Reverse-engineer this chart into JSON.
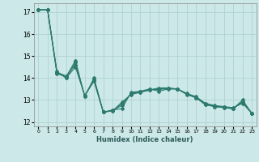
{
  "background_color": "#cce8e8",
  "grid_color": "#aacece",
  "line_color": "#2d7a6e",
  "xlabel": "Humidex (Indice chaleur)",
  "xlim": [
    -0.5,
    23.5
  ],
  "ylim": [
    11.8,
    17.4
  ],
  "yticks": [
    12,
    13,
    14,
    15,
    16,
    17
  ],
  "xticks": [
    0,
    1,
    2,
    3,
    4,
    5,
    6,
    7,
    8,
    9,
    10,
    11,
    12,
    13,
    14,
    15,
    16,
    17,
    18,
    19,
    20,
    21,
    22,
    23
  ],
  "series": [
    {
      "x": [
        0,
        1,
        2,
        3,
        4,
        5,
        6,
        7,
        8,
        9,
        10,
        11,
        12,
        13,
        14,
        15,
        16,
        17,
        18,
        19,
        20,
        21,
        22,
        23
      ],
      "y": [
        17.1,
        17.1,
        14.3,
        14.0,
        14.5,
        13.2,
        13.85,
        12.45,
        12.55,
        12.6,
        13.35,
        13.4,
        13.5,
        13.4,
        13.5,
        13.5,
        13.3,
        13.15,
        12.85,
        12.75,
        12.7,
        12.65,
        12.85,
        12.4
      ]
    },
    {
      "x": [
        0,
        1,
        2,
        3,
        4,
        5,
        6,
        7,
        8,
        9,
        10,
        11,
        12,
        13,
        14,
        15,
        16,
        17,
        18,
        19,
        20,
        21,
        22,
        23
      ],
      "y": [
        17.1,
        17.1,
        14.2,
        14.05,
        14.8,
        13.15,
        14.0,
        12.45,
        12.5,
        12.9,
        13.25,
        13.35,
        13.45,
        13.55,
        13.55,
        13.5,
        13.25,
        13.1,
        12.8,
        12.7,
        12.65,
        12.6,
        13.0,
        12.4
      ]
    },
    {
      "x": [
        0,
        1,
        2,
        3,
        4,
        5,
        6,
        7,
        8,
        9,
        10,
        11,
        12,
        13,
        14,
        15,
        16,
        17,
        18,
        19,
        20,
        21,
        22,
        23
      ],
      "y": [
        17.1,
        17.1,
        14.25,
        14.1,
        14.6,
        13.2,
        13.9,
        12.45,
        12.52,
        12.75,
        13.3,
        13.38,
        13.48,
        13.48,
        13.52,
        13.5,
        13.28,
        13.12,
        12.82,
        12.72,
        12.68,
        12.62,
        12.92,
        12.4
      ]
    },
    {
      "x": [
        0,
        1,
        2,
        3,
        4,
        5,
        6,
        7,
        8,
        9,
        10,
        11,
        12,
        13,
        14,
        15,
        16,
        17,
        18,
        19,
        20,
        21,
        22,
        23
      ],
      "y": [
        17.1,
        17.1,
        14.28,
        14.0,
        14.7,
        13.18,
        13.95,
        12.45,
        12.51,
        12.82,
        13.28,
        13.36,
        13.46,
        13.5,
        13.53,
        13.5,
        13.26,
        13.1,
        12.78,
        12.7,
        12.66,
        12.61,
        12.9,
        12.4
      ]
    }
  ]
}
